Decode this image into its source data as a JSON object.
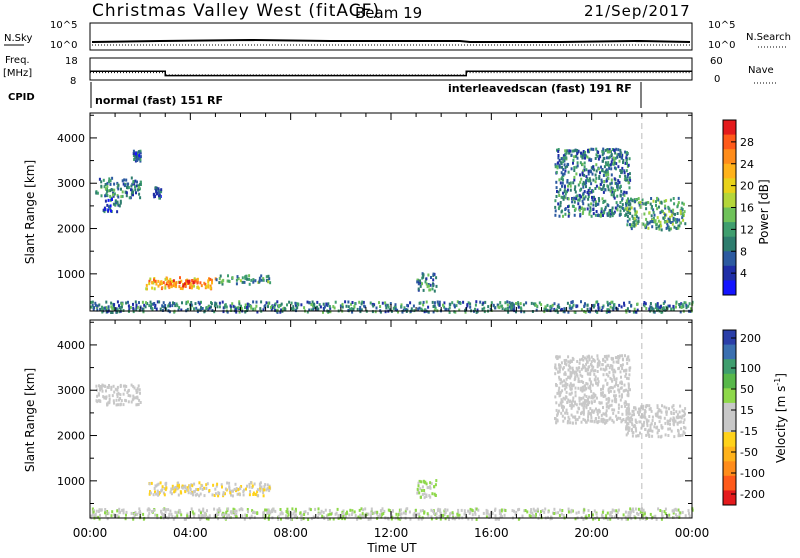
{
  "header": {
    "title": "Christmas Valley West (fitACF)",
    "beam": "Beam 19",
    "date": "21/Sep/2017"
  },
  "top_panel": {
    "nsky_label": "N.Sky",
    "nsky_ticks": [
      "10^5",
      "10^0"
    ],
    "nsearch_label": "N.Search",
    "nsearch_ticks": [
      "10^5",
      "10^0"
    ],
    "freq_label_1": "Freq.",
    "freq_label_2": "[MHz]",
    "freq_ticks": [
      "18",
      "8"
    ],
    "nave_label": "Nave",
    "nave_ticks": [
      "60",
      "0"
    ],
    "cpid_label": "CPID",
    "cpid_segments": [
      {
        "label": "normal (fast) 151 RF",
        "start_hour": 0,
        "end_hour": 15
      },
      {
        "label": "interleavedscan (fast) 191 RF",
        "start_hour": 15,
        "end_hour": 22
      }
    ]
  },
  "axes": {
    "xlabel": "Time UT",
    "ylabel": "Slant Range [km]",
    "x_ticks": [
      "00:00",
      "04:00",
      "08:00",
      "12:00",
      "16:00",
      "20:00",
      "00:00"
    ],
    "y_ticks": [
      "1000",
      "2000",
      "3000",
      "4000"
    ]
  },
  "power_colorbar": {
    "label": "Power [dB]",
    "ticks": [
      "28",
      "24",
      "20",
      "16",
      "12",
      "8",
      "4"
    ],
    "colors": [
      "#e41a1c",
      "#ff5a1a",
      "#ff8c1a",
      "#ffb21a",
      "#e8d21a",
      "#b4d63a",
      "#6fc25a",
      "#3f9e6e",
      "#2e7d6e",
      "#2c5aa0",
      "#1f2ea6",
      "#1414ff"
    ]
  },
  "velocity_colorbar": {
    "label": "Velocity [m s",
    "label_sup": "-1",
    "label_end": "]",
    "ticks": [
      "200",
      "100",
      "50",
      "15",
      "-15",
      "-50",
      "-100",
      "-200"
    ],
    "colors": [
      "#2a3ea8",
      "#3a6fb0",
      "#3f9e6e",
      "#58b84a",
      "#8ed84a",
      "#c8c8c8",
      "#c8c8c8",
      "#ffd21a",
      "#ffb21a",
      "#ff8c1a",
      "#ff5a1a",
      "#e41a1c"
    ]
  },
  "chart_data": {
    "type": "heatmap",
    "xlabel": "Time UT",
    "ylabel": "Slant Range [km]",
    "xlim_hours": [
      0,
      24
    ],
    "ylim_km": [
      180,
      4550
    ],
    "panels": [
      {
        "name": "Power",
        "unit": "dB",
        "regions": [
          {
            "t0": 0.2,
            "t1": 2.0,
            "r0": 2700,
            "r1": 3150,
            "power": 10
          },
          {
            "t0": 0.5,
            "t1": 1.2,
            "r0": 2400,
            "r1": 2700,
            "power": 8
          },
          {
            "t0": 1.7,
            "t1": 2.0,
            "r0": 3500,
            "r1": 3750,
            "power": 8
          },
          {
            "t0": 2.5,
            "t1": 2.8,
            "r0": 2700,
            "r1": 2950,
            "power": 8
          },
          {
            "t0": 2.2,
            "t1": 5.0,
            "r0": 700,
            "r1": 950,
            "power": 22
          },
          {
            "t0": 3.0,
            "t1": 4.2,
            "r0": 720,
            "r1": 880,
            "power": 26
          },
          {
            "t0": 5.0,
            "t1": 7.2,
            "r0": 800,
            "r1": 1000,
            "power": 12
          },
          {
            "t0": 13.0,
            "t1": 13.8,
            "r0": 650,
            "r1": 1050,
            "power": 10
          },
          {
            "t0": 18.5,
            "t1": 21.5,
            "r0": 2300,
            "r1": 3800,
            "power": 10
          },
          {
            "t0": 21.3,
            "t1": 23.7,
            "r0": 2000,
            "r1": 2700,
            "power": 12
          },
          {
            "t0": 0.0,
            "t1": 24.0,
            "r0": 180,
            "r1": 420,
            "power": 10
          }
        ]
      },
      {
        "name": "Velocity",
        "unit": "m/s",
        "regions": [
          {
            "t0": 0.2,
            "t1": 2.0,
            "r0": 2700,
            "r1": 3150,
            "velocity": 0
          },
          {
            "t0": 2.2,
            "t1": 7.2,
            "r0": 700,
            "r1": 1000,
            "velocity": -30
          },
          {
            "t0": 13.0,
            "t1": 13.8,
            "r0": 650,
            "r1": 1050,
            "velocity": 40
          },
          {
            "t0": 18.5,
            "t1": 21.5,
            "r0": 2300,
            "r1": 3800,
            "velocity": 0
          },
          {
            "t0": 21.3,
            "t1": 23.7,
            "r0": 2000,
            "r1": 2700,
            "velocity": 0
          },
          {
            "t0": 0.0,
            "t1": 24.0,
            "r0": 180,
            "r1": 420,
            "velocity": 30
          }
        ]
      }
    ],
    "dashed_vertical_line_hour": 22.0,
    "frequency_mhz": [
      {
        "t0": 0,
        "t1": 3,
        "value": 12
      },
      {
        "t0": 3,
        "t1": 15,
        "value": 10
      },
      {
        "t0": 15,
        "t1": 24,
        "value": 12
      }
    ],
    "nave": [
      {
        "t0": 0,
        "t1": 3,
        "value": 20
      },
      {
        "t0": 3,
        "t1": 15,
        "value": 14
      },
      {
        "t0": 15,
        "t1": 24,
        "value": 20
      }
    ]
  }
}
